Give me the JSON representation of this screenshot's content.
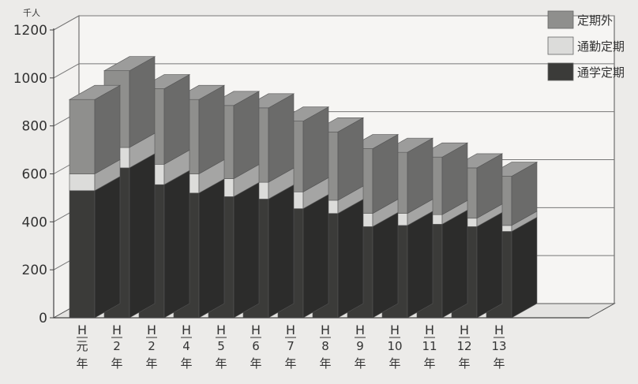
{
  "chart_data": {
    "type": "bar",
    "stacked": true,
    "three_d": true,
    "unit_label": "千人",
    "ylim": [
      0,
      1200
    ],
    "yticks": [
      0,
      200,
      400,
      600,
      800,
      1000,
      1200
    ],
    "grid": true,
    "legend_position": "top-right",
    "categories": [
      {
        "era": "H",
        "num": "元",
        "suffix": "年"
      },
      {
        "era": "H",
        "num": "2",
        "suffix": "年"
      },
      {
        "era": "H",
        "num": "2",
        "suffix": "年"
      },
      {
        "era": "H",
        "num": "4",
        "suffix": "年"
      },
      {
        "era": "H",
        "num": "5",
        "suffix": "年"
      },
      {
        "era": "H",
        "num": "6",
        "suffix": "年"
      },
      {
        "era": "H",
        "num": "7",
        "suffix": "年"
      },
      {
        "era": "H",
        "num": "8",
        "suffix": "年"
      },
      {
        "era": "H",
        "num": "9",
        "suffix": "年"
      },
      {
        "era": "H",
        "num": "10",
        "suffix": "年"
      },
      {
        "era": "H",
        "num": "11",
        "suffix": "年"
      },
      {
        "era": "H",
        "num": "12",
        "suffix": "年"
      },
      {
        "era": "H",
        "num": "13",
        "suffix": "年"
      }
    ],
    "series": [
      {
        "name": "通学定期",
        "color": "#3b3b39",
        "values": [
          530,
          625,
          555,
          520,
          505,
          495,
          455,
          435,
          380,
          385,
          390,
          380,
          360
        ]
      },
      {
        "name": "通勤定期",
        "color": "#dcdcda",
        "values": [
          70,
          85,
          85,
          80,
          75,
          70,
          70,
          55,
          55,
          50,
          40,
          35,
          25
        ]
      },
      {
        "name": "定期外",
        "color": "#8f8f8d",
        "values": [
          310,
          320,
          315,
          310,
          305,
          310,
          295,
          285,
          270,
          255,
          240,
          210,
          205
        ]
      }
    ],
    "legend_order": [
      "定期外",
      "通勤定期",
      "通学定期"
    ]
  }
}
